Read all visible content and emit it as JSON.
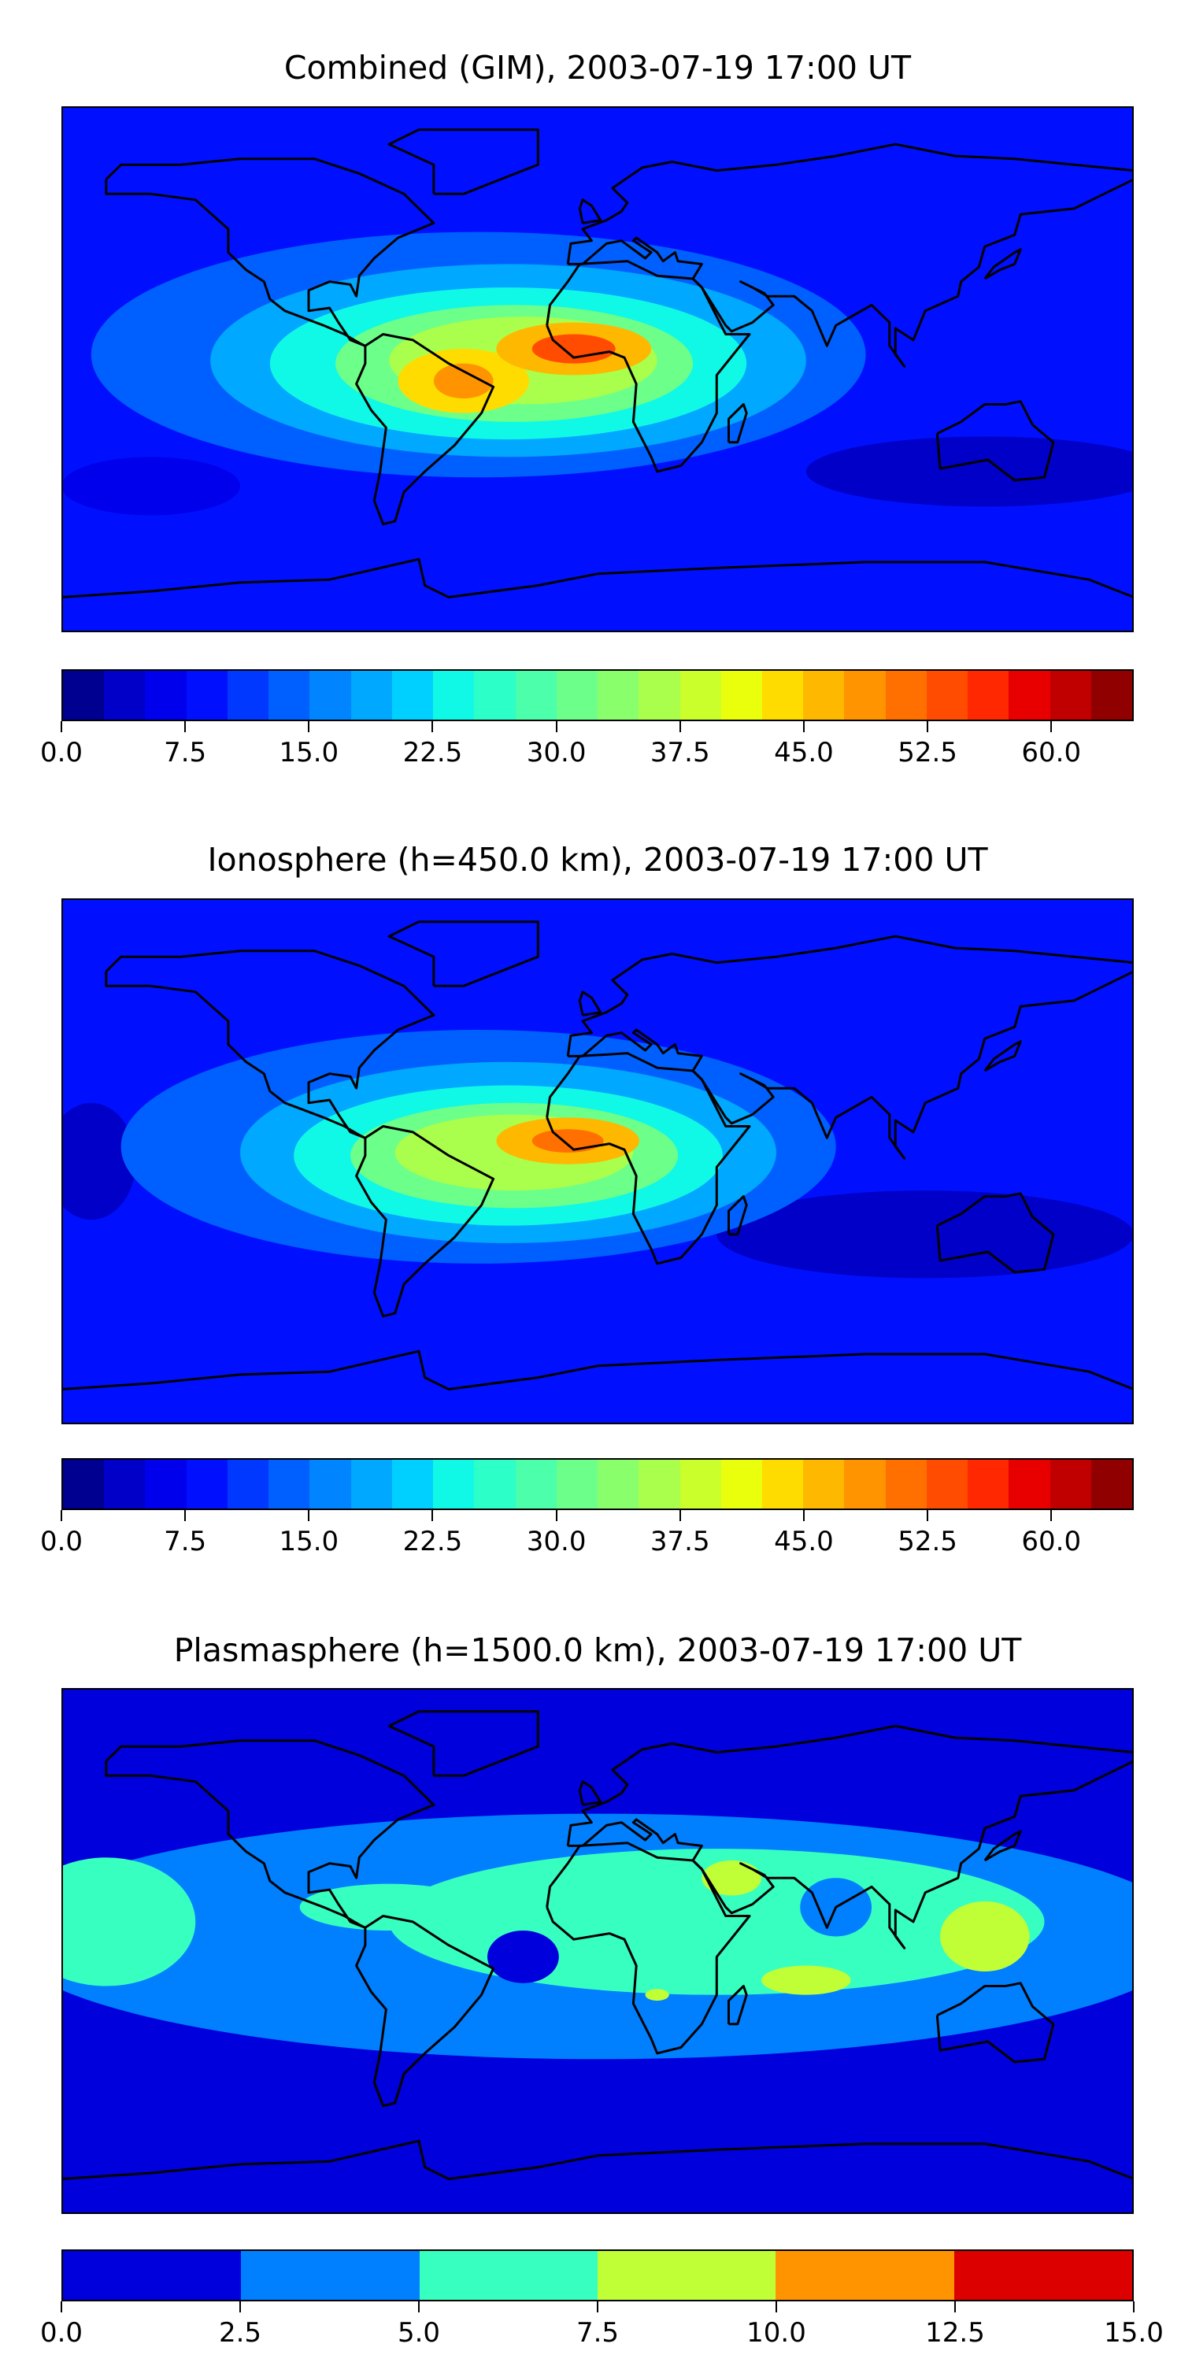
{
  "chart_data": [
    {
      "type": "heatmap",
      "subtype": "filled-contour-map",
      "title": "Combined (GIM), 2003-07-19 17:00 UT",
      "projection": "equirectangular",
      "xlim": [
        -180,
        180
      ],
      "ylim": [
        -90,
        90
      ],
      "colorbar": {
        "range": [
          0,
          65
        ],
        "step": 2.5,
        "ticks": [
          "0.0",
          "7.5",
          "15.0",
          "22.5",
          "30.0",
          "37.5",
          "45.0",
          "52.5",
          "60.0"
        ],
        "colors": [
          "#000090",
          "#0000c8",
          "#0000ec",
          "#0010ff",
          "#0038ff",
          "#0060ff",
          "#0084ff",
          "#00a8ff",
          "#00d0ff",
          "#10f8e6",
          "#2cffc8",
          "#4cffaa",
          "#6cff8a",
          "#8aff6c",
          "#aaff4c",
          "#caff2c",
          "#eaff0c",
          "#ffdc00",
          "#ffb800",
          "#ff9400",
          "#ff7000",
          "#ff4c00",
          "#ff2800",
          "#e80000",
          "#c00000",
          "#900000"
        ]
      },
      "background_value": 9,
      "field": [
        {
          "lon": 130,
          "lat": -35,
          "rx": 60,
          "ry": 12,
          "value": 4
        },
        {
          "lon": -150,
          "lat": -40,
          "rx": 30,
          "ry": 10,
          "value": 5
        },
        {
          "lon": -40,
          "lat": 5,
          "rx": 130,
          "ry": 42,
          "value": 13
        },
        {
          "lon": -30,
          "lat": 3,
          "rx": 100,
          "ry": 33,
          "value": 18
        },
        {
          "lon": -30,
          "lat": 2,
          "rx": 80,
          "ry": 26,
          "value": 24
        },
        {
          "lon": -28,
          "lat": 2,
          "rx": 60,
          "ry": 20,
          "value": 30
        },
        {
          "lon": -25,
          "lat": 3,
          "rx": 45,
          "ry": 15,
          "value": 37
        },
        {
          "lon": -45,
          "lat": -4,
          "rx": 22,
          "ry": 11,
          "value": 43
        },
        {
          "lon": -8,
          "lat": 7,
          "rx": 26,
          "ry": 9,
          "value": 46
        },
        {
          "lon": -45,
          "lat": -4,
          "rx": 10,
          "ry": 6,
          "value": 48
        },
        {
          "lon": -8,
          "lat": 7,
          "rx": 14,
          "ry": 5,
          "value": 53
        }
      ]
    },
    {
      "type": "heatmap",
      "subtype": "filled-contour-map",
      "title": "Ionosphere  (h=450.0 km), 2003-07-19 17:00 UT",
      "projection": "equirectangular",
      "xlim": [
        -180,
        180
      ],
      "ylim": [
        -90,
        90
      ],
      "colorbar": {
        "range": [
          0,
          65
        ],
        "step": 2.5,
        "ticks": [
          "0.0",
          "7.5",
          "15.0",
          "22.5",
          "30.0",
          "37.5",
          "45.0",
          "52.5",
          "60.0"
        ],
        "colors": [
          "#000090",
          "#0000c8",
          "#0000ec",
          "#0010ff",
          "#0038ff",
          "#0060ff",
          "#0084ff",
          "#00a8ff",
          "#00d0ff",
          "#10f8e6",
          "#2cffc8",
          "#4cffaa",
          "#6cff8a",
          "#8aff6c",
          "#aaff4c",
          "#caff2c",
          "#eaff0c",
          "#ffdc00",
          "#ffb800",
          "#ff9400",
          "#ff7000",
          "#ff4c00",
          "#ff2800",
          "#e80000",
          "#c00000",
          "#900000"
        ]
      },
      "background_value": 9,
      "field": [
        {
          "lon": 110,
          "lat": -25,
          "rx": 70,
          "ry": 15,
          "value": 4
        },
        {
          "lon": -170,
          "lat": 0,
          "rx": 15,
          "ry": 20,
          "value": 4
        },
        {
          "lon": -40,
          "lat": 5,
          "rx": 120,
          "ry": 40,
          "value": 13
        },
        {
          "lon": -30,
          "lat": 3,
          "rx": 90,
          "ry": 31,
          "value": 18
        },
        {
          "lon": -30,
          "lat": 2,
          "rx": 72,
          "ry": 24,
          "value": 24
        },
        {
          "lon": -28,
          "lat": 2,
          "rx": 55,
          "ry": 18,
          "value": 30
        },
        {
          "lon": -28,
          "lat": 3,
          "rx": 40,
          "ry": 13,
          "value": 37
        },
        {
          "lon": -10,
          "lat": 7,
          "rx": 24,
          "ry": 8,
          "value": 45
        },
        {
          "lon": -10,
          "lat": 7,
          "rx": 12,
          "ry": 4,
          "value": 50
        }
      ]
    },
    {
      "type": "heatmap",
      "subtype": "filled-contour-map",
      "title": "Plasmasphere (h=1500.0 km), 2003-07-19 17:00 UT",
      "projection": "equirectangular",
      "xlim": [
        -180,
        180
      ],
      "ylim": [
        -90,
        90
      ],
      "colorbar": {
        "range": [
          0,
          15
        ],
        "step": 2.5,
        "ticks": [
          "0.0",
          "2.5",
          "5.0",
          "7.5",
          "10.0",
          "12.5",
          "15.0"
        ],
        "colors": [
          "#0000dc",
          "#0080ff",
          "#36ffc0",
          "#c0ff36",
          "#ff9400",
          "#dc0000"
        ]
      },
      "background_value": 1,
      "field": [
        {
          "lon": 0,
          "lat": 5,
          "rx": 200,
          "ry": 42,
          "value": 4
        },
        {
          "lon": 40,
          "lat": 10,
          "rx": 110,
          "ry": 25,
          "value": 6
        },
        {
          "lon": -165,
          "lat": 10,
          "rx": 30,
          "ry": 22,
          "value": 6
        },
        {
          "lon": -70,
          "lat": 15,
          "rx": 30,
          "ry": 8,
          "value": 6
        },
        {
          "lon": -25,
          "lat": -2,
          "rx": 12,
          "ry": 9,
          "value": 2
        },
        {
          "lon": 80,
          "lat": 15,
          "rx": 12,
          "ry": 10,
          "value": 4
        },
        {
          "lon": 45,
          "lat": 25,
          "rx": 10,
          "ry": 6,
          "value": 8
        },
        {
          "lon": 130,
          "lat": 5,
          "rx": 15,
          "ry": 12,
          "value": 8
        },
        {
          "lon": 70,
          "lat": -10,
          "rx": 15,
          "ry": 5,
          "value": 8
        },
        {
          "lon": 20,
          "lat": -15,
          "rx": 4,
          "ry": 2,
          "value": 8
        }
      ]
    }
  ]
}
